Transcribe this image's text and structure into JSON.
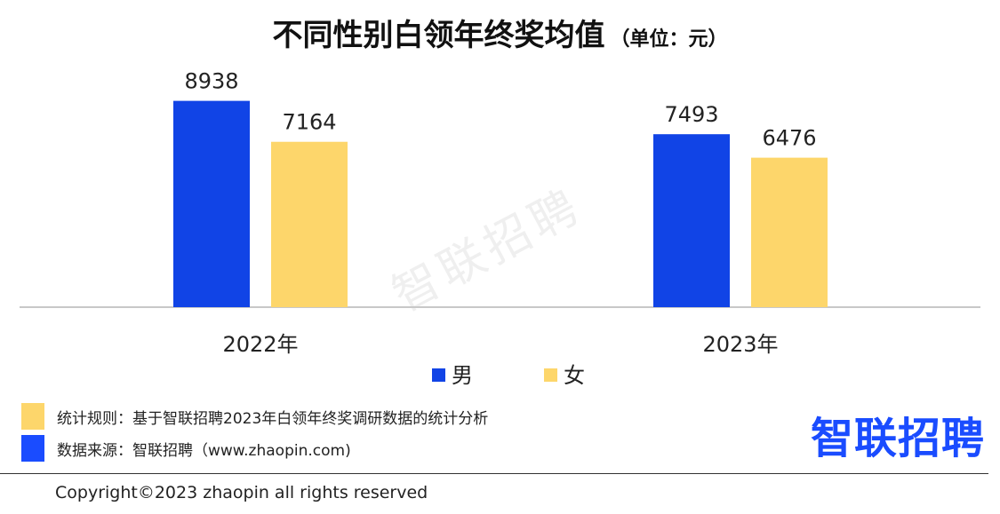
{
  "title": {
    "main": "不同性别白领年终奖均值",
    "unit": "（单位：元）"
  },
  "watermark": "智联招聘",
  "chart_data": {
    "type": "bar",
    "categories": [
      "2022年",
      "2023年"
    ],
    "series": [
      {
        "name": "男",
        "color": "#1144e6",
        "values": [
          8938,
          7493
        ]
      },
      {
        "name": "女",
        "color": "#fdd66b",
        "values": [
          7164,
          6476
        ]
      }
    ],
    "ylim": [
      0,
      10000
    ],
    "grid": false,
    "legend_position": "bottom"
  },
  "notes": [
    {
      "text": "统计规则：基于智联招聘2023年白领年终奖调研数据的统计分析",
      "color": "#fdd66b"
    },
    {
      "text": "数据来源：智联招聘（www.zhaopin.com)",
      "color": "#1a4cff"
    }
  ],
  "logo": "智联招聘",
  "copyright": "Copyright©2023 zhaopin all rights reserved"
}
